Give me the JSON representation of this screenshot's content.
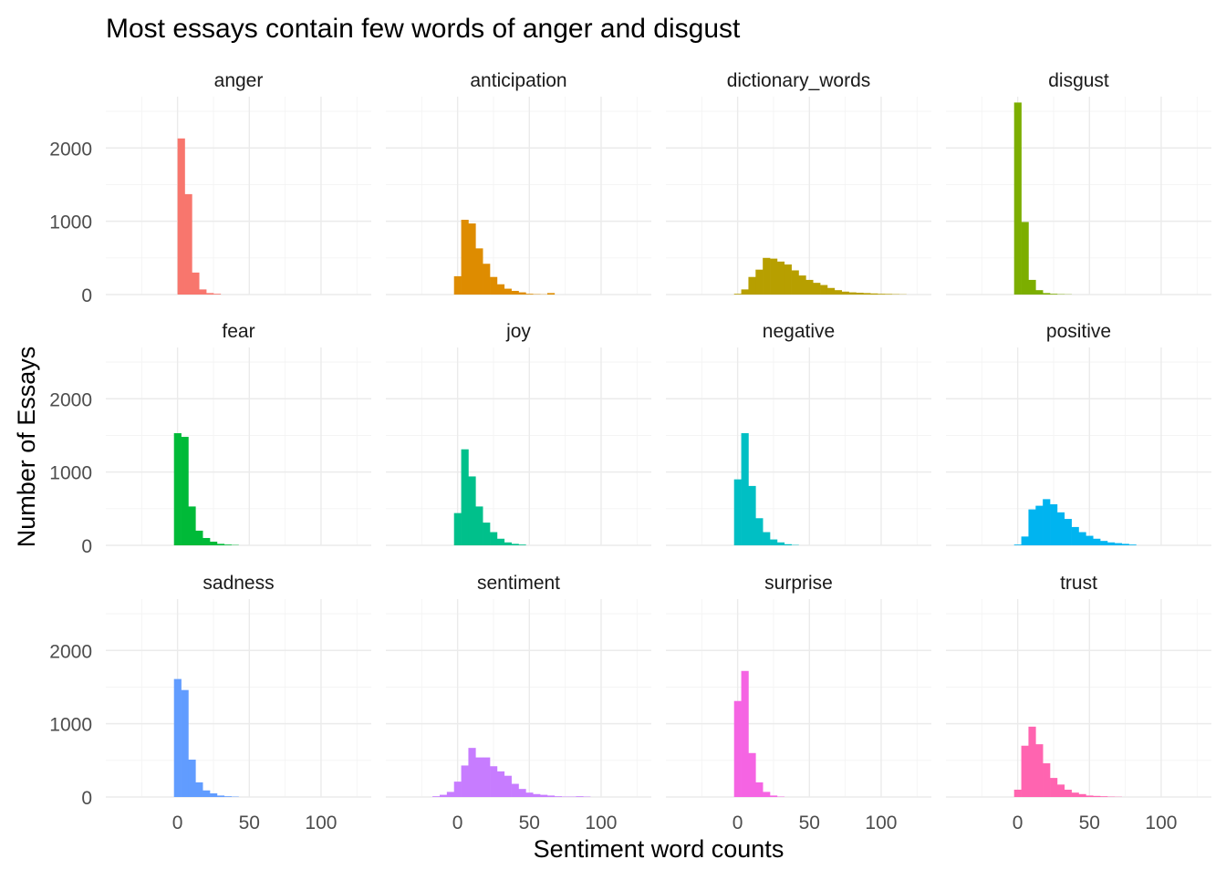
{
  "chart_data": {
    "type": "bar",
    "subtype": "histogram-facets",
    "title": "Most essays contain few words of anger and disgust",
    "xlabel": "Sentiment word counts",
    "ylabel": "Number of Essays",
    "xlim": [
      -50,
      135
    ],
    "ylim": [
      0,
      2700
    ],
    "x_ticks": [
      0,
      50,
      100
    ],
    "x_tick_labels": [
      "0",
      "50",
      "100"
    ],
    "y_ticks": [
      0,
      1000,
      2000
    ],
    "y_tick_labels": [
      "0",
      "1000",
      "2000"
    ],
    "grid": true,
    "legend": "none",
    "bin_width": 5,
    "layout": {
      "columns": 4,
      "rows": 3
    },
    "facets": [
      {
        "name": "anger",
        "color": "#F8766D",
        "bin_starts": [
          0,
          5,
          10,
          15,
          20,
          25
        ],
        "values": [
          2130,
          1370,
          300,
          70,
          20,
          10
        ]
      },
      {
        "name": "anticipation",
        "color": "#DE8C00",
        "bin_starts": [
          -2.5,
          2.5,
          7.5,
          12.5,
          17.5,
          22.5,
          27.5,
          32.5,
          37.5,
          42.5,
          47.5,
          52.5,
          57.5,
          62.5
        ],
        "values": [
          250,
          1020,
          970,
          630,
          420,
          240,
          140,
          80,
          50,
          30,
          10,
          5,
          3,
          20
        ]
      },
      {
        "name": "dictionary_words",
        "color": "#B79F00",
        "bin_starts": [
          -2.5,
          2.5,
          7.5,
          12.5,
          17.5,
          22.5,
          27.5,
          32.5,
          37.5,
          42.5,
          47.5,
          52.5,
          57.5,
          62.5,
          67.5,
          72.5,
          77.5,
          82.5,
          87.5,
          92.5,
          97.5,
          102.5,
          107.5,
          112.5
        ],
        "values": [
          10,
          70,
          240,
          340,
          500,
          490,
          450,
          410,
          330,
          260,
          200,
          160,
          130,
          90,
          60,
          40,
          30,
          25,
          20,
          15,
          10,
          8,
          5,
          3
        ]
      },
      {
        "name": "disgust",
        "color": "#7CAE00",
        "bin_starts": [
          -2.5,
          2.5,
          7.5,
          12.5,
          17.5,
          22.5,
          27.5,
          32.5
        ],
        "values": [
          2620,
          990,
          200,
          60,
          20,
          10,
          5,
          3
        ]
      },
      {
        "name": "fear",
        "color": "#00BA38",
        "bin_starts": [
          -2.5,
          2.5,
          7.5,
          12.5,
          17.5,
          22.5,
          27.5,
          32.5,
          37.5
        ],
        "values": [
          1530,
          1480,
          530,
          200,
          100,
          50,
          20,
          10,
          5
        ]
      },
      {
        "name": "joy",
        "color": "#00C08B",
        "bin_starts": [
          -2.5,
          2.5,
          7.5,
          12.5,
          17.5,
          22.5,
          27.5,
          32.5,
          37.5,
          42.5
        ],
        "values": [
          440,
          1310,
          940,
          530,
          310,
          180,
          90,
          40,
          20,
          10
        ]
      },
      {
        "name": "negative",
        "color": "#00BFC4",
        "bin_starts": [
          -2.5,
          2.5,
          7.5,
          12.5,
          17.5,
          22.5,
          27.5,
          32.5,
          37.5
        ],
        "values": [
          900,
          1530,
          810,
          370,
          180,
          80,
          40,
          15,
          5
        ]
      },
      {
        "name": "positive",
        "color": "#00B4F0",
        "bin_starts": [
          -2.5,
          2.5,
          7.5,
          12.5,
          17.5,
          22.5,
          27.5,
          32.5,
          37.5,
          42.5,
          47.5,
          52.5,
          57.5,
          62.5,
          67.5,
          72.5,
          77.5
        ],
        "values": [
          10,
          120,
          490,
          540,
          630,
          560,
          450,
          360,
          250,
          180,
          130,
          90,
          60,
          40,
          30,
          20,
          10
        ]
      },
      {
        "name": "sadness",
        "color": "#619CFF",
        "bin_starts": [
          -2.5,
          2.5,
          7.5,
          12.5,
          17.5,
          22.5,
          27.5,
          32.5,
          37.5
        ],
        "values": [
          1610,
          1460,
          510,
          200,
          90,
          50,
          20,
          10,
          5
        ]
      },
      {
        "name": "sentiment",
        "color": "#C77CFF",
        "bin_starts": [
          -17.5,
          -12.5,
          -7.5,
          -2.5,
          2.5,
          7.5,
          12.5,
          17.5,
          22.5,
          27.5,
          32.5,
          37.5,
          42.5,
          47.5,
          52.5,
          57.5,
          62.5,
          67.5,
          72.5,
          77.5,
          82.5,
          87.5
        ],
        "values": [
          10,
          30,
          70,
          210,
          430,
          670,
          540,
          540,
          420,
          350,
          290,
          180,
          110,
          60,
          40,
          30,
          20,
          10,
          5,
          5,
          10,
          5
        ]
      },
      {
        "name": "surprise",
        "color": "#F564E3",
        "bin_starts": [
          -2.5,
          2.5,
          7.5,
          12.5,
          17.5,
          22.5,
          27.5
        ],
        "values": [
          1310,
          1720,
          600,
          200,
          70,
          20,
          5
        ]
      },
      {
        "name": "trust",
        "color": "#FF64B0",
        "bin_starts": [
          -2.5,
          2.5,
          7.5,
          12.5,
          17.5,
          22.5,
          27.5,
          32.5,
          37.5,
          42.5,
          47.5,
          52.5,
          57.5,
          62.5,
          67.5
        ],
        "values": [
          100,
          700,
          960,
          720,
          460,
          260,
          170,
          100,
          60,
          40,
          20,
          15,
          10,
          5,
          3
        ]
      }
    ]
  }
}
